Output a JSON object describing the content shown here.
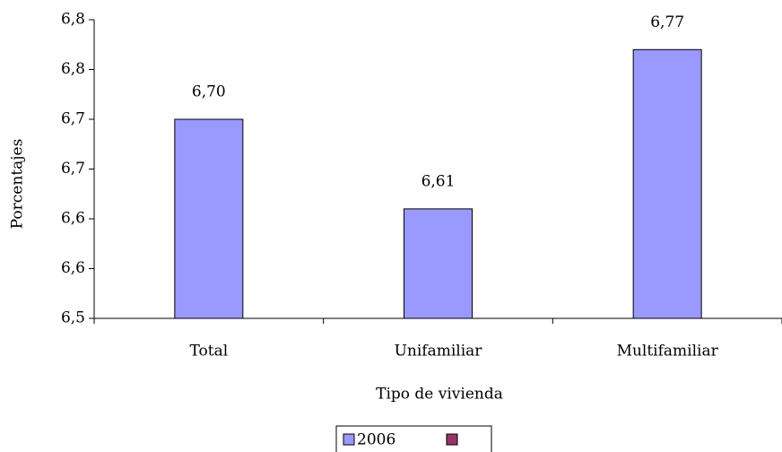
{
  "chart_data": {
    "type": "bar",
    "x_label": "Tipo de vivienda",
    "y_label": "Porcentajes",
    "categories": [
      "Total",
      "Unifamiliar",
      "Multifamiliar"
    ],
    "series": [
      {
        "name": "2006",
        "color": "#9999ff",
        "values": [
          6.7,
          6.61,
          6.77
        ],
        "value_labels": [
          "6,70",
          "6,61",
          "6,77"
        ]
      },
      {
        "color": "#993366",
        "values": [
          null,
          null,
          null
        ]
      }
    ],
    "ylim": [
      6.5,
      6.8
    ],
    "yticks": [
      {
        "value": 6.5,
        "label": "6,5"
      },
      {
        "value": 6.55,
        "label": "6,6"
      },
      {
        "value": 6.6,
        "label": "6,6"
      },
      {
        "value": 6.65,
        "label": "6,7"
      },
      {
        "value": 6.7,
        "label": "6,7"
      },
      {
        "value": 6.75,
        "label": "6,8"
      },
      {
        "value": 6.8,
        "label": "6,8"
      }
    ]
  }
}
